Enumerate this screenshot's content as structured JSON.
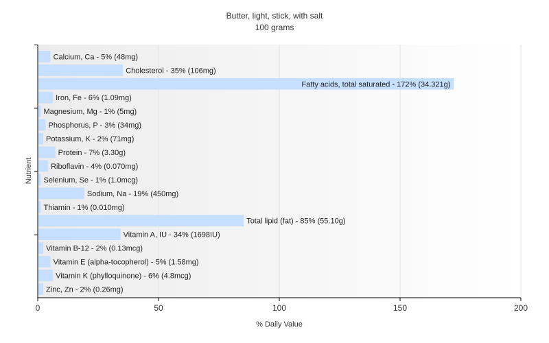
{
  "chart_data": {
    "type": "bar",
    "orientation": "horizontal",
    "title": "Butter, light, stick, with salt",
    "subtitle": "100 grams",
    "xlabel": "% Daily Value",
    "ylabel": "Nutrient",
    "xlim": [
      0,
      200
    ],
    "xticks": [
      "0",
      "50",
      "100",
      "150",
      "200"
    ],
    "grid": true,
    "bar_color": "#c6dfff",
    "categories": [
      "Calcium, Ca",
      "Cholesterol",
      "Fatty acids, total saturated",
      "Iron, Fe",
      "Magnesium, Mg",
      "Phosphorus, P",
      "Potassium, K",
      "Protein",
      "Riboflavin",
      "Selenium, Se",
      "Sodium, Na",
      "Thiamin",
      "Total lipid (fat)",
      "Vitamin A, IU",
      "Vitamin B-12",
      "Vitamin E (alpha-tocopherol)",
      "Vitamin K (phylloquinone)",
      "Zinc, Zn"
    ],
    "values": [
      5,
      35,
      172,
      6,
      1,
      3,
      2,
      7,
      4,
      1,
      19,
      1,
      85,
      34,
      2,
      5,
      6,
      2
    ],
    "labels": [
      "Calcium, Ca - 5% (48mg)",
      "Cholesterol - 35% (106mg)",
      "Fatty acids, total saturated - 172% (34.321g)",
      "Iron, Fe - 6% (1.09mg)",
      "Magnesium, Mg - 1% (5mg)",
      "Phosphorus, P - 3% (34mg)",
      "Potassium, K - 2% (71mg)",
      "Protein - 7% (3.30g)",
      "Riboflavin - 4% (0.070mg)",
      "Selenium, Se - 1% (1.0mcg)",
      "Sodium, Na - 19% (450mg)",
      "Thiamin - 1% (0.010mg)",
      "Total lipid (fat) - 85% (55.10g)",
      "Vitamin A, IU - 34% (1698IU)",
      "Vitamin B-12 - 2% (0.13mcg)",
      "Vitamin E (alpha-tocopherol) - 5% (1.58mg)",
      "Vitamin K (phylloquinone) - 6% (4.8mcg)",
      "Zinc, Zn - 2% (0.26mg)"
    ]
  }
}
